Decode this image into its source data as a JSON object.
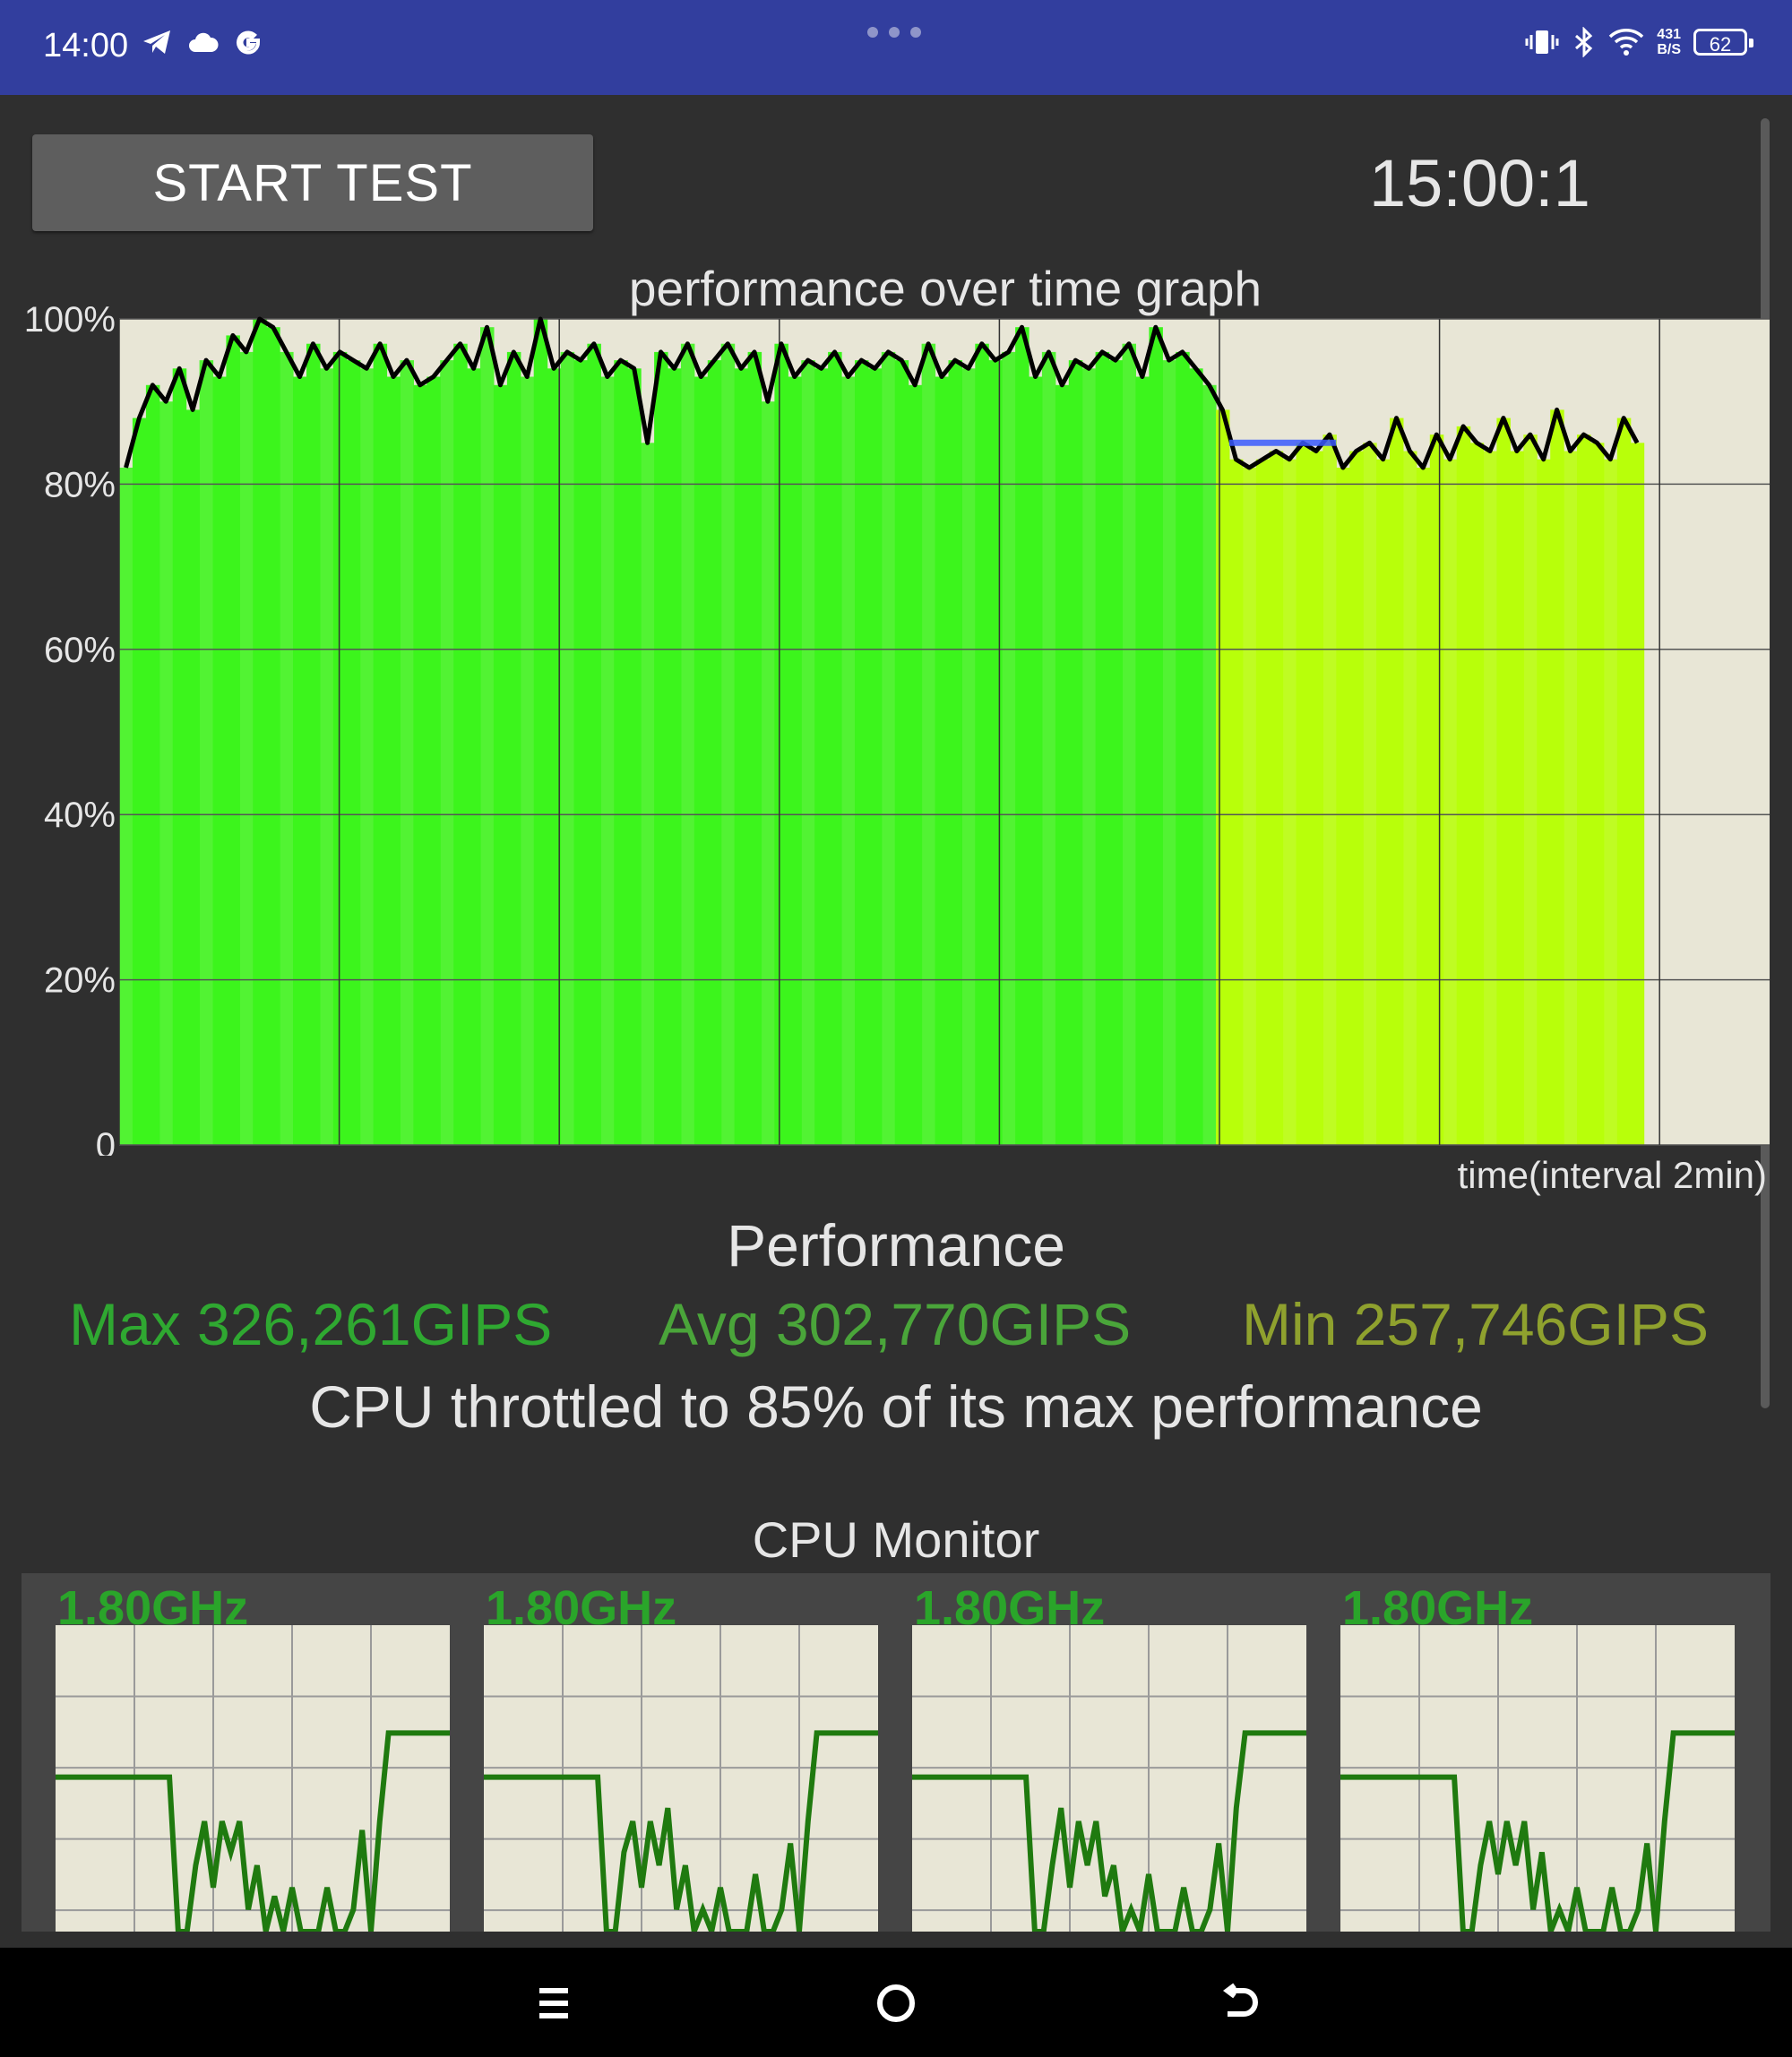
{
  "status_bar": {
    "time": "14:00",
    "left_icons": [
      "telegram-icon",
      "cloud-icon",
      "google-icon"
    ],
    "net_speed_value": "431",
    "net_speed_unit": "B/S",
    "battery": "62",
    "right_icons": [
      "vibrate-icon",
      "bluetooth-icon",
      "wifi-icon"
    ]
  },
  "controls": {
    "start_label": "START TEST",
    "timer": "15:00:1"
  },
  "chart": {
    "title": "performance over time graph",
    "x_label": "time(interval 2min)"
  },
  "chart_data": {
    "type": "area",
    "title": "performance over time graph",
    "xlabel": "time(interval 2min)",
    "ylabel": "",
    "y_ticks": [
      "0",
      "20%",
      "40%",
      "60%",
      "80%",
      "100%"
    ],
    "ylim": [
      0,
      100
    ],
    "x_interval_minutes": 2,
    "x_range_minutes": [
      0,
      15
    ],
    "grid": true,
    "series": [
      {
        "values": [
          82,
          88,
          92,
          90,
          94,
          89,
          95,
          93,
          98,
          96,
          100,
          99,
          96,
          93,
          97,
          94,
          96,
          95,
          94,
          97,
          93,
          95,
          92,
          93,
          95,
          97,
          94,
          99,
          92,
          96,
          93,
          100,
          94,
          96,
          95,
          97,
          93,
          95,
          94,
          85,
          96,
          94,
          97,
          93,
          95,
          97,
          94,
          96,
          90,
          97,
          93,
          95,
          94,
          96,
          93,
          95,
          94,
          96,
          95,
          92,
          97,
          93,
          95,
          94,
          97,
          95,
          96,
          99,
          93,
          96,
          92,
          95,
          94,
          96,
          95,
          97,
          93,
          99,
          95,
          96,
          94,
          92,
          89,
          83,
          82,
          83,
          84,
          83,
          85,
          84,
          86,
          82,
          84,
          85,
          83,
          88,
          84,
          82,
          86,
          83,
          87,
          85,
          84,
          88,
          84,
          86,
          83,
          89,
          84,
          86,
          85,
          83,
          88,
          85
        ]
      }
    ],
    "throttle_marker_percent": 85
  },
  "performance": {
    "heading": "Performance",
    "max": "Max 326,261GIPS",
    "avg": "Avg 302,770GIPS",
    "min": "Min 257,746GIPS",
    "throttle_text": "CPU throttled to 85% of its max performance"
  },
  "cpu_monitor": {
    "heading": "CPU Monitor",
    "cores": [
      {
        "freq": "1.80GHz"
      },
      {
        "freq": "1.80GHz"
      },
      {
        "freq": "1.80GHz"
      },
      {
        "freq": "1.80GHz"
      }
    ],
    "trace_levels": [
      0.7,
      0.7,
      0.7,
      0.7,
      0.7,
      0.7,
      0.7,
      0.7,
      0.7,
      0.7,
      0.7,
      0.7,
      0.7,
      0.7,
      0.0,
      0.0,
      0.3,
      0.5,
      0.2,
      0.5,
      0.3,
      0.5,
      0.1,
      0.3,
      0.0,
      0.1,
      0.0,
      0.2,
      0.0,
      0.0,
      0.0,
      0.2,
      0.0,
      0.0,
      0.1,
      0.4,
      0.0,
      0.5,
      0.9,
      0.9,
      0.9,
      0.9,
      0.9,
      0.9,
      0.9,
      0.9
    ]
  },
  "nav": {
    "icons": [
      "menu-icon",
      "home-icon",
      "back-icon"
    ]
  },
  "colors": {
    "status_bar": "#323e9e",
    "background": "#2f2f2f",
    "plot_background": "#e8e6d6",
    "bar_green": "#3cf51c",
    "bar_yellow": "#b8ff0a",
    "line": "#000000",
    "marker": "#3b5bff",
    "cpu_trace": "#1f7a0f"
  }
}
